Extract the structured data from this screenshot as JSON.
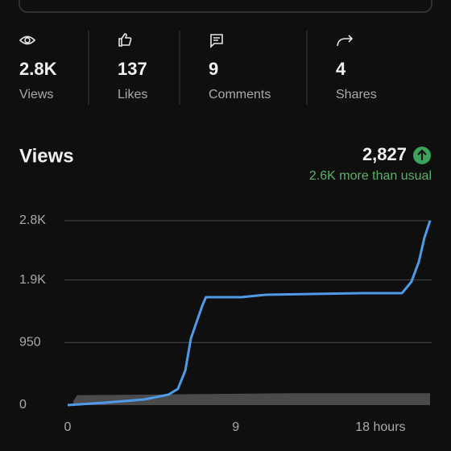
{
  "stats": [
    {
      "value": "2.8K",
      "label": "Views"
    },
    {
      "value": "137",
      "label": "Likes"
    },
    {
      "value": "9",
      "label": "Comments"
    },
    {
      "value": "4",
      "label": "Shares"
    }
  ],
  "views_card": {
    "title": "Views",
    "total": "2,827",
    "comparison": "2.6K more than usual"
  },
  "chart_data": {
    "type": "line",
    "xlim": [
      0,
      19.4
    ],
    "ylim": [
      0,
      2800
    ],
    "xticks": [
      0,
      9,
      {
        "value": 18,
        "label": "18 hours"
      }
    ],
    "yticks": [
      0,
      950,
      {
        "value": 1900,
        "label": "1.9K"
      },
      {
        "value": 2800,
        "label": "2.8K"
      }
    ],
    "grid": true,
    "series": [
      {
        "type": "area",
        "color": "#4a4a4a",
        "x": [
          0.3,
          0.5,
          12,
          19.4
        ],
        "values": [
          60,
          150,
          180,
          180
        ]
      },
      {
        "color": "#4f9be8",
        "x": [
          0,
          2,
          4.1,
          5.4,
          5.9,
          6.3,
          6.6,
          6.9,
          7.2,
          7.4,
          9.3,
          10.6,
          15.8,
          17.9,
          18.4,
          18.8,
          19.1,
          19.4
        ],
        "values": [
          0,
          37,
          86,
          159,
          245,
          526,
          1015,
          1259,
          1504,
          1638,
          1638,
          1675,
          1700,
          1700,
          1871,
          2176,
          2543,
          2800
        ]
      }
    ]
  }
}
